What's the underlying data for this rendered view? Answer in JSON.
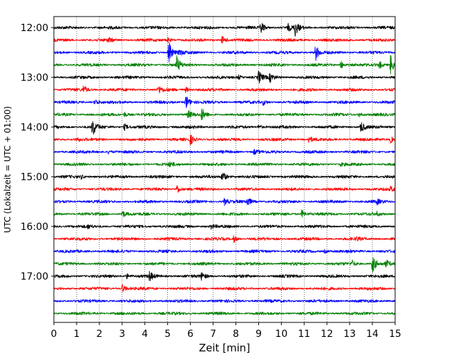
{
  "chart_data": {
    "type": "line",
    "title": "",
    "xlabel": "Zeit  [min]",
    "ylabel": "UTC (Lokalzeit = UTC + 01:00)",
    "xlim": [
      0,
      15
    ],
    "x_ticks": [
      "0",
      "1",
      "2",
      "3",
      "4",
      "5",
      "6",
      "7",
      "8",
      "9",
      "10",
      "11",
      "12",
      "13",
      "14",
      "15"
    ],
    "y_ticks": [
      "12:00",
      "13:00",
      "14:00",
      "15:00",
      "16:00",
      "17:00"
    ],
    "grid": "vertical-dotted",
    "colors": [
      "#000000",
      "#ff0000",
      "#0000ff",
      "#008000"
    ],
    "traces": [
      {
        "start": "12:00",
        "color": "#000000",
        "events": [
          [
            9.1,
            0.8
          ],
          [
            10.6,
            1.0
          ],
          [
            10.3,
            0.4
          ]
        ]
      },
      {
        "start": "12:15",
        "color": "#ff0000",
        "events": [
          [
            7.4,
            0.5
          ],
          [
            2.4,
            0.3
          ],
          [
            5.0,
            0.3
          ]
        ]
      },
      {
        "start": "12:30",
        "color": "#0000ff",
        "events": [
          [
            5.05,
            1.4
          ],
          [
            11.5,
            1.0
          ],
          [
            5.5,
            0.4
          ]
        ]
      },
      {
        "start": "12:45",
        "color": "#008000",
        "events": [
          [
            5.4,
            1.0
          ],
          [
            14.8,
            1.3
          ],
          [
            12.6,
            0.5
          ],
          [
            14.3,
            0.5
          ]
        ]
      },
      {
        "start": "13:00",
        "color": "#000000",
        "events": [
          [
            9.0,
            0.8
          ],
          [
            9.5,
            0.5
          ],
          [
            8.1,
            0.3
          ]
        ]
      },
      {
        "start": "13:15",
        "color": "#ff0000",
        "events": [
          [
            1.3,
            0.5
          ],
          [
            4.6,
            0.5
          ],
          [
            5.8,
            0.3
          ]
        ]
      },
      {
        "start": "13:30",
        "color": "#0000ff",
        "events": [
          [
            5.8,
            1.0
          ],
          [
            1.8,
            0.4
          ],
          [
            9.2,
            0.3
          ]
        ]
      },
      {
        "start": "13:45",
        "color": "#008000",
        "events": [
          [
            6.5,
            0.8
          ],
          [
            5.9,
            0.5
          ],
          [
            3.1,
            0.3
          ],
          [
            13.4,
            0.3
          ]
        ]
      },
      {
        "start": "14:00",
        "color": "#000000",
        "events": [
          [
            1.7,
            1.2
          ],
          [
            3.1,
            0.4
          ],
          [
            9.0,
            0.3
          ],
          [
            13.5,
            0.7
          ]
        ]
      },
      {
        "start": "14:15",
        "color": "#ff0000",
        "events": [
          [
            6.0,
            0.6
          ],
          [
            11.2,
            0.4
          ],
          [
            14.8,
            0.4
          ],
          [
            1.0,
            0.3
          ]
        ]
      },
      {
        "start": "14:30",
        "color": "#0000ff",
        "events": [
          [
            8.8,
            0.3
          ],
          [
            2.4,
            0.2
          ]
        ]
      },
      {
        "start": "14:45",
        "color": "#008000",
        "events": [
          [
            5.1,
            0.3
          ],
          [
            12.6,
            0.2
          ]
        ]
      },
      {
        "start": "15:00",
        "color": "#000000",
        "events": [
          [
            7.4,
            0.8
          ],
          [
            1.2,
            0.2
          ]
        ]
      },
      {
        "start": "15:15",
        "color": "#ff0000",
        "events": [
          [
            5.4,
            0.6
          ],
          [
            14.8,
            0.3
          ]
        ]
      },
      {
        "start": "15:30",
        "color": "#0000ff",
        "events": [
          [
            7.5,
            0.4
          ],
          [
            8.5,
            0.6
          ],
          [
            14.2,
            0.3
          ]
        ]
      },
      {
        "start": "15:45",
        "color": "#008000",
        "events": [
          [
            3.0,
            0.5
          ],
          [
            10.9,
            0.5
          ],
          [
            14.2,
            0.2
          ]
        ]
      },
      {
        "start": "16:00",
        "color": "#000000",
        "events": [
          [
            6.9,
            0.3
          ],
          [
            1.5,
            0.2
          ]
        ]
      },
      {
        "start": "16:15",
        "color": "#ff0000",
        "events": [
          [
            7.9,
            0.4
          ],
          [
            13.3,
            0.2
          ]
        ]
      },
      {
        "start": "16:30",
        "color": "#0000ff",
        "events": [
          [
            11.9,
            0.2
          ]
        ]
      },
      {
        "start": "16:45",
        "color": "#008000",
        "events": [
          [
            14.0,
            1.2
          ],
          [
            13.1,
            0.4
          ],
          [
            14.6,
            0.4
          ]
        ]
      },
      {
        "start": "17:00",
        "color": "#000000",
        "events": [
          [
            4.2,
            0.6
          ],
          [
            6.5,
            0.5
          ],
          [
            3.2,
            0.3
          ]
        ]
      },
      {
        "start": "17:15",
        "color": "#ff0000",
        "events": [
          [
            3.0,
            0.5
          ]
        ]
      },
      {
        "start": "17:30",
        "color": "#0000ff",
        "events": []
      },
      {
        "start": "17:45",
        "color": "#008000",
        "events": []
      }
    ]
  }
}
